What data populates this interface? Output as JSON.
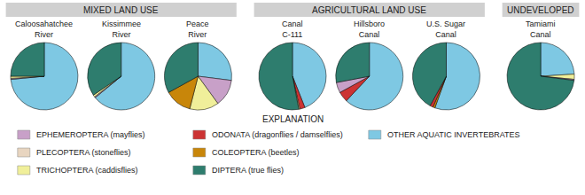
{
  "chart_data": {
    "type": "pie",
    "groups": [
      {
        "title": "MIXED LAND USE",
        "charts": [
          {
            "title": "Caloosahatchee\nRiver",
            "values": [
              0.735,
              0.005,
              0.01,
              0.25
            ],
            "colors": [
              "#7ec8e3",
              "#c8a0c8",
              "#f0ef9a",
              "#2e7d6e"
            ]
          },
          {
            "title": "Kissimmee\nRiver",
            "values": [
              0.64,
              0.005,
              0.01,
              0.345
            ],
            "colors": [
              "#7ec8e3",
              "#c8a0c8",
              "#f0ef9a",
              "#2e7d6e"
            ]
          },
          {
            "title": "Peace\nRiver",
            "values": [
              0.27,
              0.13,
              0.14,
              0.13,
              0.33
            ],
            "colors": [
              "#7ec8e3",
              "#c8a0c8",
              "#f0ef9a",
              "#c8860a",
              "#2e7d6e"
            ]
          }
        ]
      },
      {
        "title": "AGRICULTURAL LAND USE",
        "charts": [
          {
            "title": "Canal\nC-111",
            "values": [
              0.44,
              0.025,
              0.005,
              0.53
            ],
            "colors": [
              "#7ec8e3",
              "#cc3333",
              "#f0ef9a",
              "#2e7d6e"
            ]
          },
          {
            "title": "Hillsboro\nCanal",
            "values": [
              0.62,
              0.05,
              0.05,
              0.28
            ],
            "colors": [
              "#7ec8e3",
              "#cc3333",
              "#c8a0c8",
              "#2e7d6e"
            ]
          },
          {
            "title": "U.S. Sugar\nCanal",
            "values": [
              0.555,
              0.01,
              0.015,
              0.42
            ],
            "colors": [
              "#7ec8e3",
              "#c8860a",
              "#cc3333",
              "#2e7d6e"
            ]
          }
        ]
      },
      {
        "title": "UNDEVELOPED",
        "charts": [
          {
            "title": "Tamiami\nCanal",
            "values": [
              0.24,
              0.025,
              0.005,
              0.73
            ],
            "colors": [
              "#7ec8e3",
              "#f0ef9a",
              "#c8a0c8",
              "#2e7d6e"
            ]
          }
        ]
      }
    ],
    "annotations": [
      "EXPLANATION"
    ],
    "series": [
      {
        "name": "EPHEMEROPTERA (mayflies)",
        "color": "#c8a0c8"
      },
      {
        "name": "PLECOPTERA (stoneflies)",
        "color": "#e8d5c0"
      },
      {
        "name": "TRICHOPTERA (caddisflies)",
        "color": "#f0ef9a"
      },
      {
        "name": "ODONATA (dragonflies / damselflies)",
        "color": "#cc3333"
      },
      {
        "name": "COLEOPTERA (beetles)",
        "color": "#c8860a"
      },
      {
        "name": "DIPTERA (true flies)",
        "color": "#2e7d6e"
      },
      {
        "name": "OTHER AQUATIC INVERTEBRATES",
        "color": "#7ec8e3"
      }
    ]
  }
}
